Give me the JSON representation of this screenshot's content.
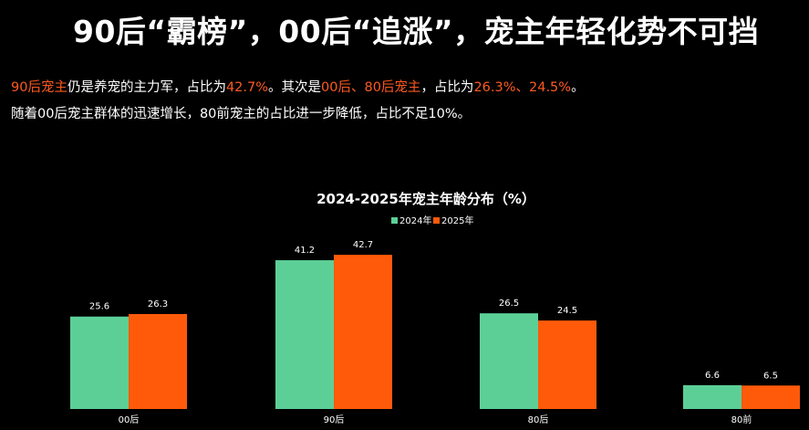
{
  "headline": "90后“霸榜”，00后“追涨”，宠主年轻化势不可挡",
  "description": {
    "line1": [
      {
        "text": "90后宠主",
        "highlight": true
      },
      {
        "text": "仍是养宠的主力军，占比为",
        "highlight": false
      },
      {
        "text": "42.7%",
        "highlight": true
      },
      {
        "text": "。其次是",
        "highlight": false
      },
      {
        "text": "00后、80后宠主",
        "highlight": true
      },
      {
        "text": "，占比为",
        "highlight": false
      },
      {
        "text": "26.3%、24.5%",
        "highlight": true
      },
      {
        "text": "。",
        "highlight": false
      }
    ],
    "line2": "随着00后宠主群体的迅速增长，80前宠主的占比进一步降低，占比不足10%。"
  },
  "colors": {
    "highlight": "#ff5a1f",
    "series_2024": "#5ccf97",
    "series_2025": "#ff5a0a",
    "background": "#000000"
  },
  "chart_data": {
    "type": "bar",
    "title": "2024-2025年宠主年龄分布（%）",
    "categories": [
      "00后",
      "90后",
      "80后",
      "80前"
    ],
    "series": [
      {
        "name": "2024年",
        "values": [
          25.6,
          41.2,
          26.5,
          6.6
        ]
      },
      {
        "name": "2025年",
        "values": [
          26.3,
          42.7,
          24.5,
          6.5
        ]
      }
    ],
    "ylim": [
      0,
      45
    ],
    "xlabel": "",
    "ylabel": "",
    "legend": "top-center",
    "grid": false
  }
}
